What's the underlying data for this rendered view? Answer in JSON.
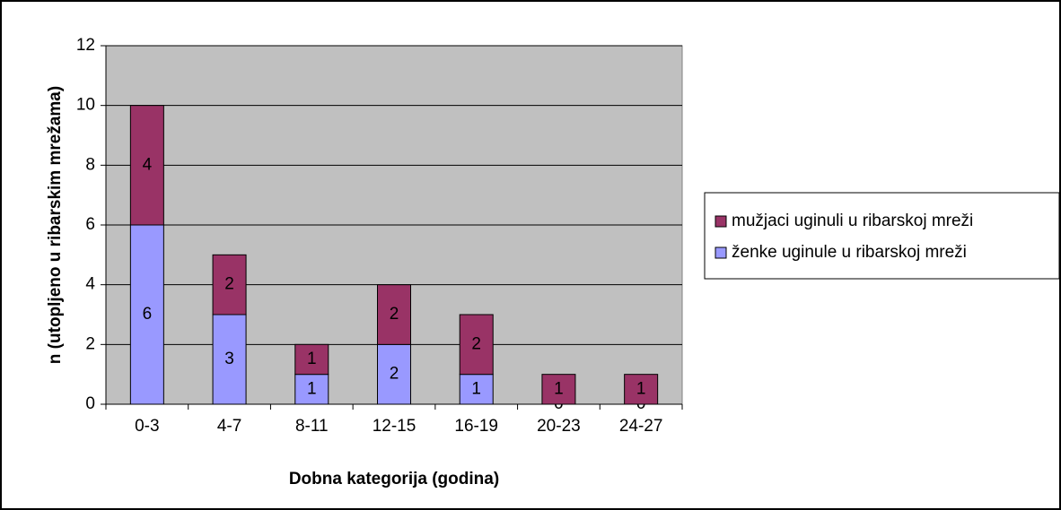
{
  "chart_data": {
    "type": "stacked_bar",
    "x_label": "Dobna kategorija (godina)",
    "y_label": "n (utopljeno u ribarskim mrežama)",
    "categories": [
      "0-3",
      "4-7",
      "8-11",
      "12-15",
      "16-19",
      "20-23",
      "24-27"
    ],
    "series": [
      {
        "name": "ženke uginule u ribarskoj mreži",
        "color": "#9999ff",
        "values": [
          6,
          3,
          1,
          2,
          1,
          0,
          0
        ]
      },
      {
        "name": "mužjaci uginuli u ribarskoj mreži",
        "color": "#993366",
        "values": [
          4,
          2,
          1,
          2,
          2,
          1,
          1
        ]
      }
    ],
    "ylim": [
      0,
      12
    ],
    "yticks": [
      0,
      2,
      4,
      6,
      8,
      10,
      12
    ],
    "grid": true,
    "legend": "right",
    "plot_background": "#c0c0c0"
  }
}
